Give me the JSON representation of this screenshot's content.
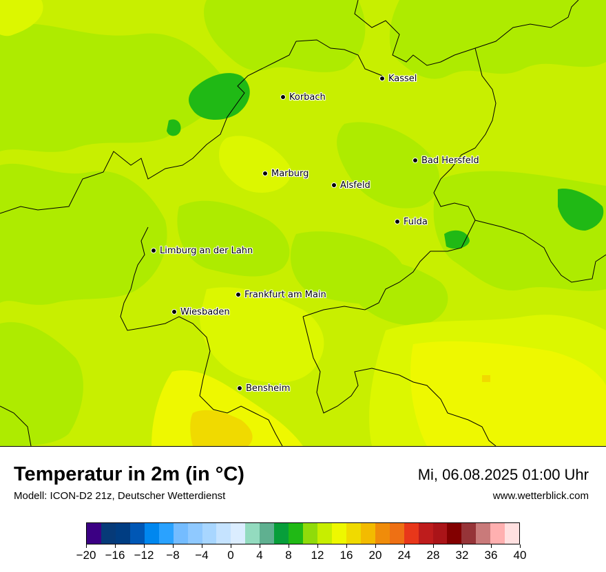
{
  "map": {
    "cities": [
      {
        "name": "Kassel"
      },
      {
        "name": "Korbach"
      },
      {
        "name": "Bad Hersfeld"
      },
      {
        "name": "Marburg"
      },
      {
        "name": "Alsfeld"
      },
      {
        "name": "Fulda"
      },
      {
        "name": "Limburg an der Lahn"
      },
      {
        "name": "Frankfurt am Main"
      },
      {
        "name": "Wiesbaden"
      },
      {
        "name": "Bensheim"
      }
    ],
    "base_color": "#c8ef00",
    "temperature_colors": [
      "#8fdb0a",
      "#aeeb00",
      "#c8ef00",
      "#dcf700",
      "#eef800",
      "#f2f500",
      "#eed800",
      "#20b915"
    ]
  },
  "footer": {
    "title": "Temperatur in 2m (in °C)",
    "subtitle": "Modell: ICON-D2 21z, Deutscher Wetterdienst",
    "datetime": "Mi, 06.08.2025 01:00 Uhr",
    "website": "www.wetterblick.com"
  },
  "legend": {
    "colors": [
      "#3b0083",
      "#063a78",
      "#003d82",
      "#0057b5",
      "#0087ef",
      "#2aa2ff",
      "#74bcff",
      "#8fc9ff",
      "#a8d6ff",
      "#c5e3ff",
      "#dbedff",
      "#93dbbf",
      "#5fb090",
      "#079e3a",
      "#20b915",
      "#90db0a",
      "#c7ee00",
      "#eef800",
      "#f0da00",
      "#f3bb00",
      "#f08c0a",
      "#ee7014",
      "#e8371a",
      "#be1c1c",
      "#aa1418",
      "#820000",
      "#963438",
      "#c97a7a",
      "#ffb0b0",
      "#ffe0e0"
    ],
    "ticks": [
      "−20",
      "−16",
      "−12",
      "−8",
      "−4",
      "0",
      "4",
      "8",
      "12",
      "16",
      "20",
      "24",
      "28",
      "32",
      "36",
      "40"
    ]
  }
}
